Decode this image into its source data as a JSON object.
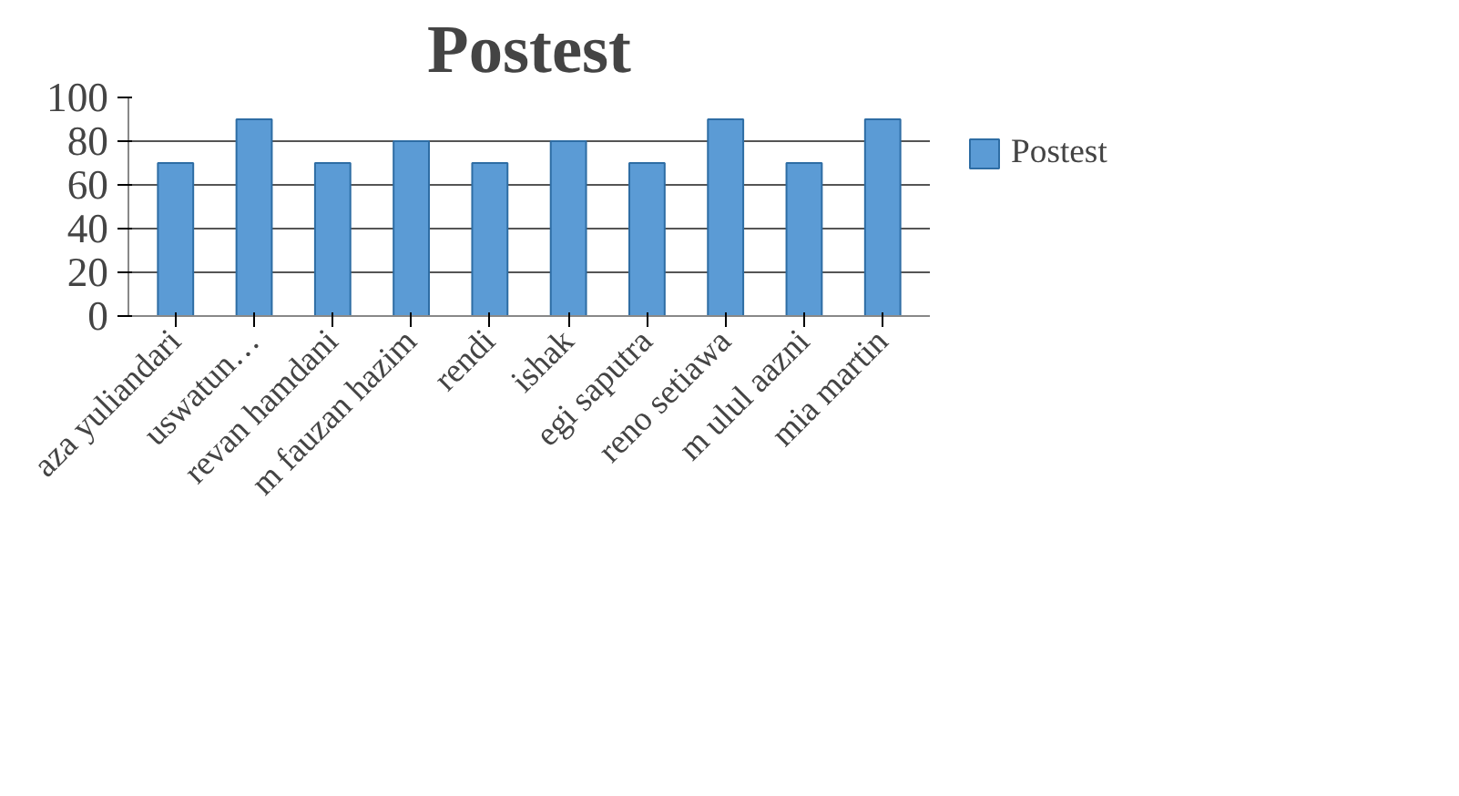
{
  "chart_data": {
    "type": "bar",
    "title": "Postest",
    "categories": [
      "aza yuliandari",
      "uswatun…",
      "revan hamdani",
      "m fauzan hazim",
      "rendi",
      "ishak",
      "egi saputra",
      "reno setiawa",
      "m ulul aazni",
      "mia martin"
    ],
    "series": [
      {
        "name": "Postest",
        "color": "#5b9bd5",
        "values": [
          70,
          90,
          70,
          80,
          70,
          80,
          70,
          90,
          70,
          90
        ]
      }
    ],
    "ylim": [
      0,
      100
    ],
    "yticks": [
      0,
      20,
      40,
      60,
      80,
      100
    ],
    "grid": "y",
    "legend": "right"
  }
}
